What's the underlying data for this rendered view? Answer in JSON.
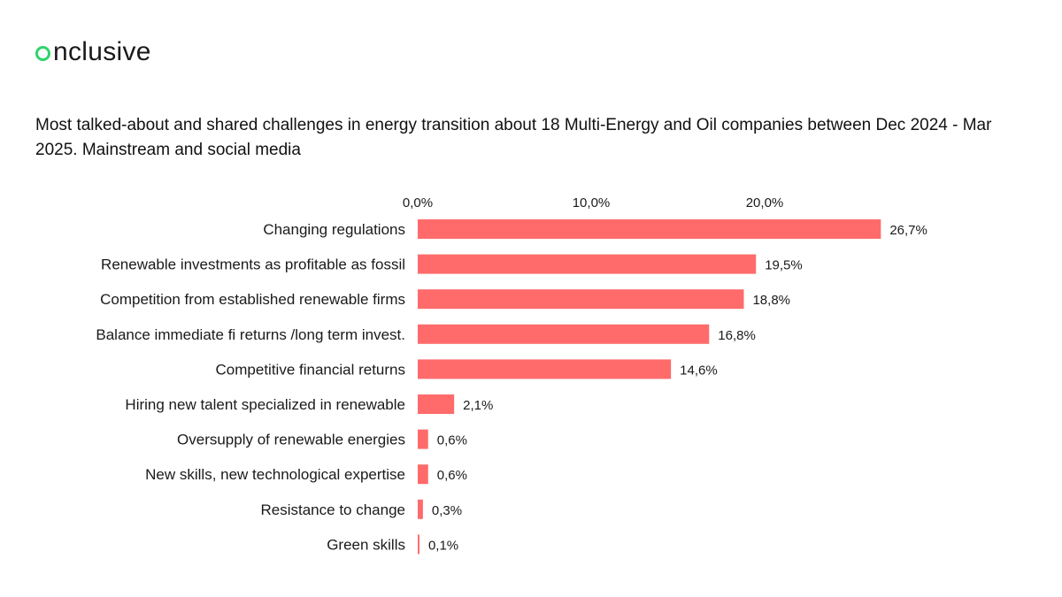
{
  "brand": {
    "logo_text": "nclusive",
    "accent": "#2fd36b"
  },
  "chart_data": {
    "type": "bar",
    "orientation": "horizontal",
    "title": "Most talked-about and shared challenges in energy transition about 18 Multi-Energy and Oil companies between Dec 2024 - Mar 2025. Mainstream and social media",
    "categories": [
      "Changing regulations",
      "Renewable investments as profitable as fossil",
      "Competition from established renewable firms",
      "Balance immediate fi returns /long term invest.",
      "Competitive financial returns",
      "Hiring new talent specialized in renewable",
      "Oversupply of renewable energies",
      "New skills, new technological expertise",
      "Resistance to change",
      "Green skills"
    ],
    "values": [
      26.7,
      19.5,
      18.8,
      16.8,
      14.6,
      2.1,
      0.6,
      0.6,
      0.3,
      0.1
    ],
    "value_labels": [
      "26,7%",
      "19,5%",
      "18,8%",
      "16,8%",
      "14,6%",
      "2,1%",
      "0,6%",
      "0,6%",
      "0,3%",
      "0,1%"
    ],
    "x_ticks": [
      0,
      10,
      20
    ],
    "x_tick_labels": [
      "0,0%",
      "10,0%",
      "20,0%"
    ],
    "x_axis_position": "top",
    "xlim": [
      0,
      27
    ],
    "bar_color": "#ff6b6b",
    "grid": false,
    "legend": "none"
  }
}
